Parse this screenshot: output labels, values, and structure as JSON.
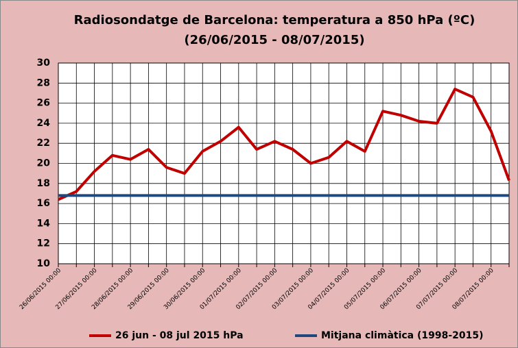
{
  "chart_data": {
    "type": "line",
    "title": [
      "Radiosondatge de Barcelona:  temperatura a 850 hPa (ºC)",
      "(26/06/2015 - 08/07/2015)"
    ],
    "categories": [
      "26/06/2015 00:00",
      null,
      "27/06/2015 00:00",
      null,
      "28/06/2015 00:00",
      null,
      "29/06/2015 00:00",
      null,
      "30/06/2015 00:00",
      null,
      "01/07/2015 00:00",
      null,
      "02/07/2015 00:00",
      null,
      "03/07/2015 00:00",
      null,
      "04/07/2015 00:00",
      null,
      "05/07/2015 00:00",
      null,
      "06/07/2015 00:00",
      null,
      "07/07/2015 00:00",
      null,
      "08/07/2015 00:00",
      null
    ],
    "series": [
      {
        "name": "26 jun - 08 jul 2015 hPa",
        "color": "#c00000",
        "values": [
          16.4,
          17.2,
          19.2,
          20.8,
          20.4,
          21.4,
          19.6,
          19.0,
          21.2,
          22.2,
          23.6,
          21.4,
          22.2,
          21.4,
          20.0,
          20.6,
          22.2,
          21.2,
          25.2,
          24.8,
          24.2,
          24.0,
          27.4,
          26.6,
          23.2,
          18.3
        ]
      },
      {
        "name": "Mitjana climàtica (1998-2015)",
        "color": "#1f497d",
        "values": [
          16.8,
          16.8,
          16.8,
          16.8,
          16.8,
          16.8,
          16.8,
          16.8,
          16.8,
          16.8,
          16.8,
          16.8,
          16.8,
          16.8,
          16.8,
          16.8,
          16.8,
          16.8,
          16.8,
          16.8,
          16.8,
          16.8,
          16.8,
          16.8,
          16.8,
          16.8
        ]
      }
    ],
    "ylim": [
      10,
      30
    ],
    "yticks": [
      10,
      12,
      14,
      16,
      18,
      20,
      22,
      24,
      26,
      28,
      30
    ],
    "grid": true,
    "legend": "bottom"
  }
}
